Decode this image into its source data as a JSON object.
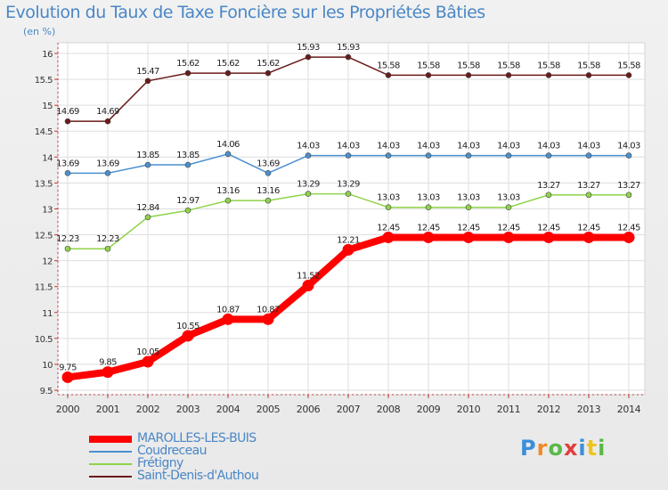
{
  "chart_data": {
    "type": "line",
    "title": "Evolution du Taux de Taxe Foncière sur les Propriétés Bâties",
    "subtitle": "(en %)",
    "categories": [
      "2000",
      "2001",
      "2002",
      "2003",
      "2004",
      "2005",
      "2006",
      "2007",
      "2008",
      "2009",
      "2010",
      "2011",
      "2012",
      "2013",
      "2014"
    ],
    "ylim": [
      9.5,
      16
    ],
    "yticks": [
      "9.5",
      "10",
      "10.5",
      "11",
      "11.5",
      "12",
      "12.5",
      "13",
      "13.5",
      "14",
      "14.5",
      "15",
      "15.5",
      "16"
    ],
    "grid": true,
    "series": [
      {
        "name": "MAROLLES-LES-BUIS",
        "color": "#ff0000",
        "labels": [
          "9.75",
          "9.85",
          "10.05",
          "10.55",
          "10.87",
          "10.87",
          "11.52",
          "12.21",
          "12.45",
          "12.45",
          "12.45",
          "12.45",
          "12.45",
          "12.45",
          "12.45"
        ],
        "values": [
          9.75,
          9.85,
          10.05,
          10.55,
          10.87,
          10.87,
          11.52,
          12.21,
          12.45,
          12.45,
          12.45,
          12.45,
          12.45,
          12.45,
          12.45
        ]
      },
      {
        "name": "Coudreceau",
        "color": "#4a90d0",
        "labels": [
          "13.69",
          "13.69",
          "13.85",
          "13.85",
          "14.06",
          "13.69",
          "14.03",
          "14.03",
          "14.03",
          "14.03",
          "14.03",
          "14.03",
          "14.03",
          "14.03",
          "14.03"
        ],
        "values": [
          13.69,
          13.69,
          13.85,
          13.85,
          14.06,
          13.69,
          14.03,
          14.03,
          14.03,
          14.03,
          14.03,
          14.03,
          14.03,
          14.03,
          14.03
        ]
      },
      {
        "name": "Frétigny",
        "color": "#8fd34a",
        "labels": [
          "12.23",
          "12.23",
          "12.84",
          "12.97",
          "13.16",
          "13.16",
          "13.29",
          "13.29",
          "13.03",
          "13.03",
          "13.03",
          "13.03",
          "13.27",
          "13.27",
          "13.27"
        ],
        "values": [
          12.23,
          12.23,
          12.84,
          12.97,
          13.16,
          13.16,
          13.29,
          13.29,
          13.03,
          13.03,
          13.03,
          13.03,
          13.27,
          13.27,
          13.27
        ]
      },
      {
        "name": "Saint-Denis-d'Authou",
        "color": "#6b1a1a",
        "labels": [
          "14.69",
          "14.69",
          "15.47",
          "15.62",
          "15.62",
          "15.62",
          "15.93",
          "15.93",
          "15.58",
          "15.58",
          "15.58",
          "15.58",
          "15.58",
          "15.58",
          "15.58"
        ],
        "values": [
          14.69,
          14.69,
          15.47,
          15.62,
          15.62,
          15.62,
          15.93,
          15.93,
          15.58,
          15.58,
          15.58,
          15.58,
          15.58,
          15.58,
          15.58
        ]
      }
    ],
    "legend_position": "bottom-left"
  },
  "legend": [
    {
      "label": "MAROLLES-LES-BUIS",
      "color": "#ff0000"
    },
    {
      "label": "Coudreceau",
      "color": "#4a90d0"
    },
    {
      "label": "Frétigny",
      "color": "#8fd34a"
    },
    {
      "label": "Saint-Denis-d'Authou",
      "color": "#6b1a1a"
    }
  ],
  "logo": {
    "text": "Proxiti",
    "colors": [
      "#3b8fd9",
      "#f08a24",
      "#58b947",
      "#e23c3c",
      "#3b8fd9",
      "#f0c419",
      "#58b947"
    ]
  }
}
